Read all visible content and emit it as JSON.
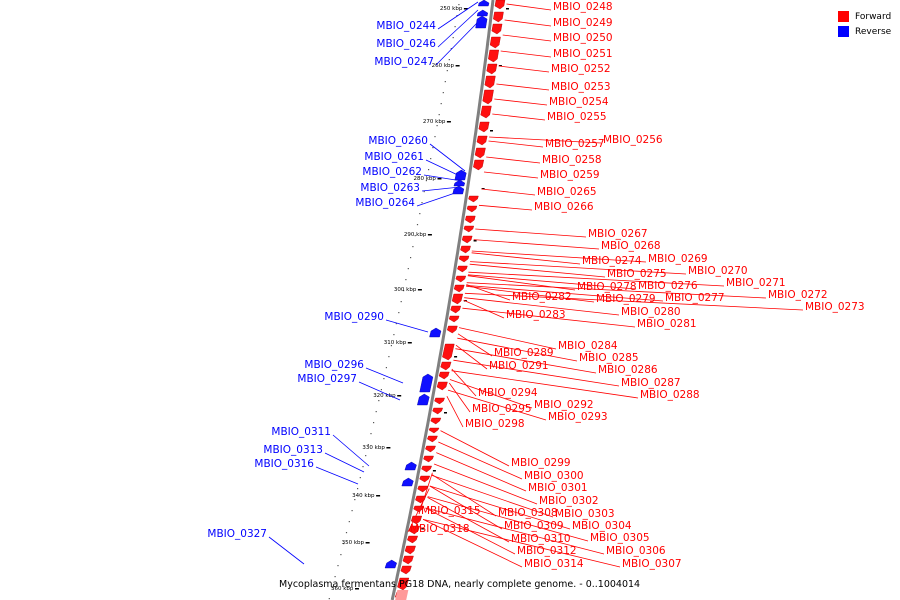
{
  "caption": "Mycoplasma fermentans PG18 DNA, nearly complete genome. - 0..1004014",
  "legend": [
    {
      "label": "Forward",
      "color": "#ff0000"
    },
    {
      "label": "Reverse",
      "color": "#0000ff"
    }
  ],
  "kbp_ticks": [
    "250 kbp",
    "260 kbp",
    "270 kbp",
    "280 kbp",
    "290 kbp",
    "300 kbp",
    "310 kbp",
    "320 kbp",
    "330 kbp",
    "340 kbp",
    "350 kbp",
    "360 kbp"
  ],
  "reverse_genes": [
    "MBIO_0244",
    "MBIO_0246",
    "MBIO_0247",
    "MBIO_0260",
    "MBIO_0261",
    "MBIO_0262",
    "MBIO_0263",
    "MBIO_0264",
    "MBIO_0290",
    "MBIO_0296",
    "MBIO_0297",
    "MBIO_0311",
    "MBIO_0313",
    "MBIO_0316",
    "MBIO_0327"
  ],
  "forward_genes": [
    "MBIO_0248",
    "MBIO_0249",
    "MBIO_0250",
    "MBIO_0251",
    "MBIO_0252",
    "MBIO_0253",
    "MBIO_0254",
    "MBIO_0255",
    "MBIO_0256",
    "MBIO_0257",
    "MBIO_0258",
    "MBIO_0259",
    "MBIO_0265",
    "MBIO_0266",
    "MBIO_0267",
    "MBIO_0268",
    "MBIO_0269",
    "MBIO_0274",
    "MBIO_0270",
    "MBIO_0275",
    "MBIO_0271",
    "MBIO_0276",
    "MBIO_0278",
    "MBIO_0272",
    "MBIO_0277",
    "MBIO_0279",
    "MBIO_0282",
    "MBIO_0273",
    "MBIO_0280",
    "MBIO_0283",
    "MBIO_0281",
    "MBIO_0284",
    "MBIO_0289",
    "MBIO_0285",
    "MBIO_0291",
    "MBIO_0286",
    "MBIO_0287",
    "MBIO_0294",
    "MBIO_0288",
    "MBIO_0292",
    "MBIO_0295",
    "MBIO_0293",
    "MBIO_0298",
    "MBIO_0299",
    "MBIO_0300",
    "MBIO_0301",
    "MBIO_0302",
    "MBIO_0315",
    "MBIO_0308",
    "MBIO_0303",
    "MBIO_0309",
    "MBIO_0304",
    "MBIO_0318",
    "MBIO_0310",
    "MBIO_0305",
    "MBIO_0312",
    "MBIO_0306",
    "MBIO_0314",
    "MBIO_0307"
  ]
}
